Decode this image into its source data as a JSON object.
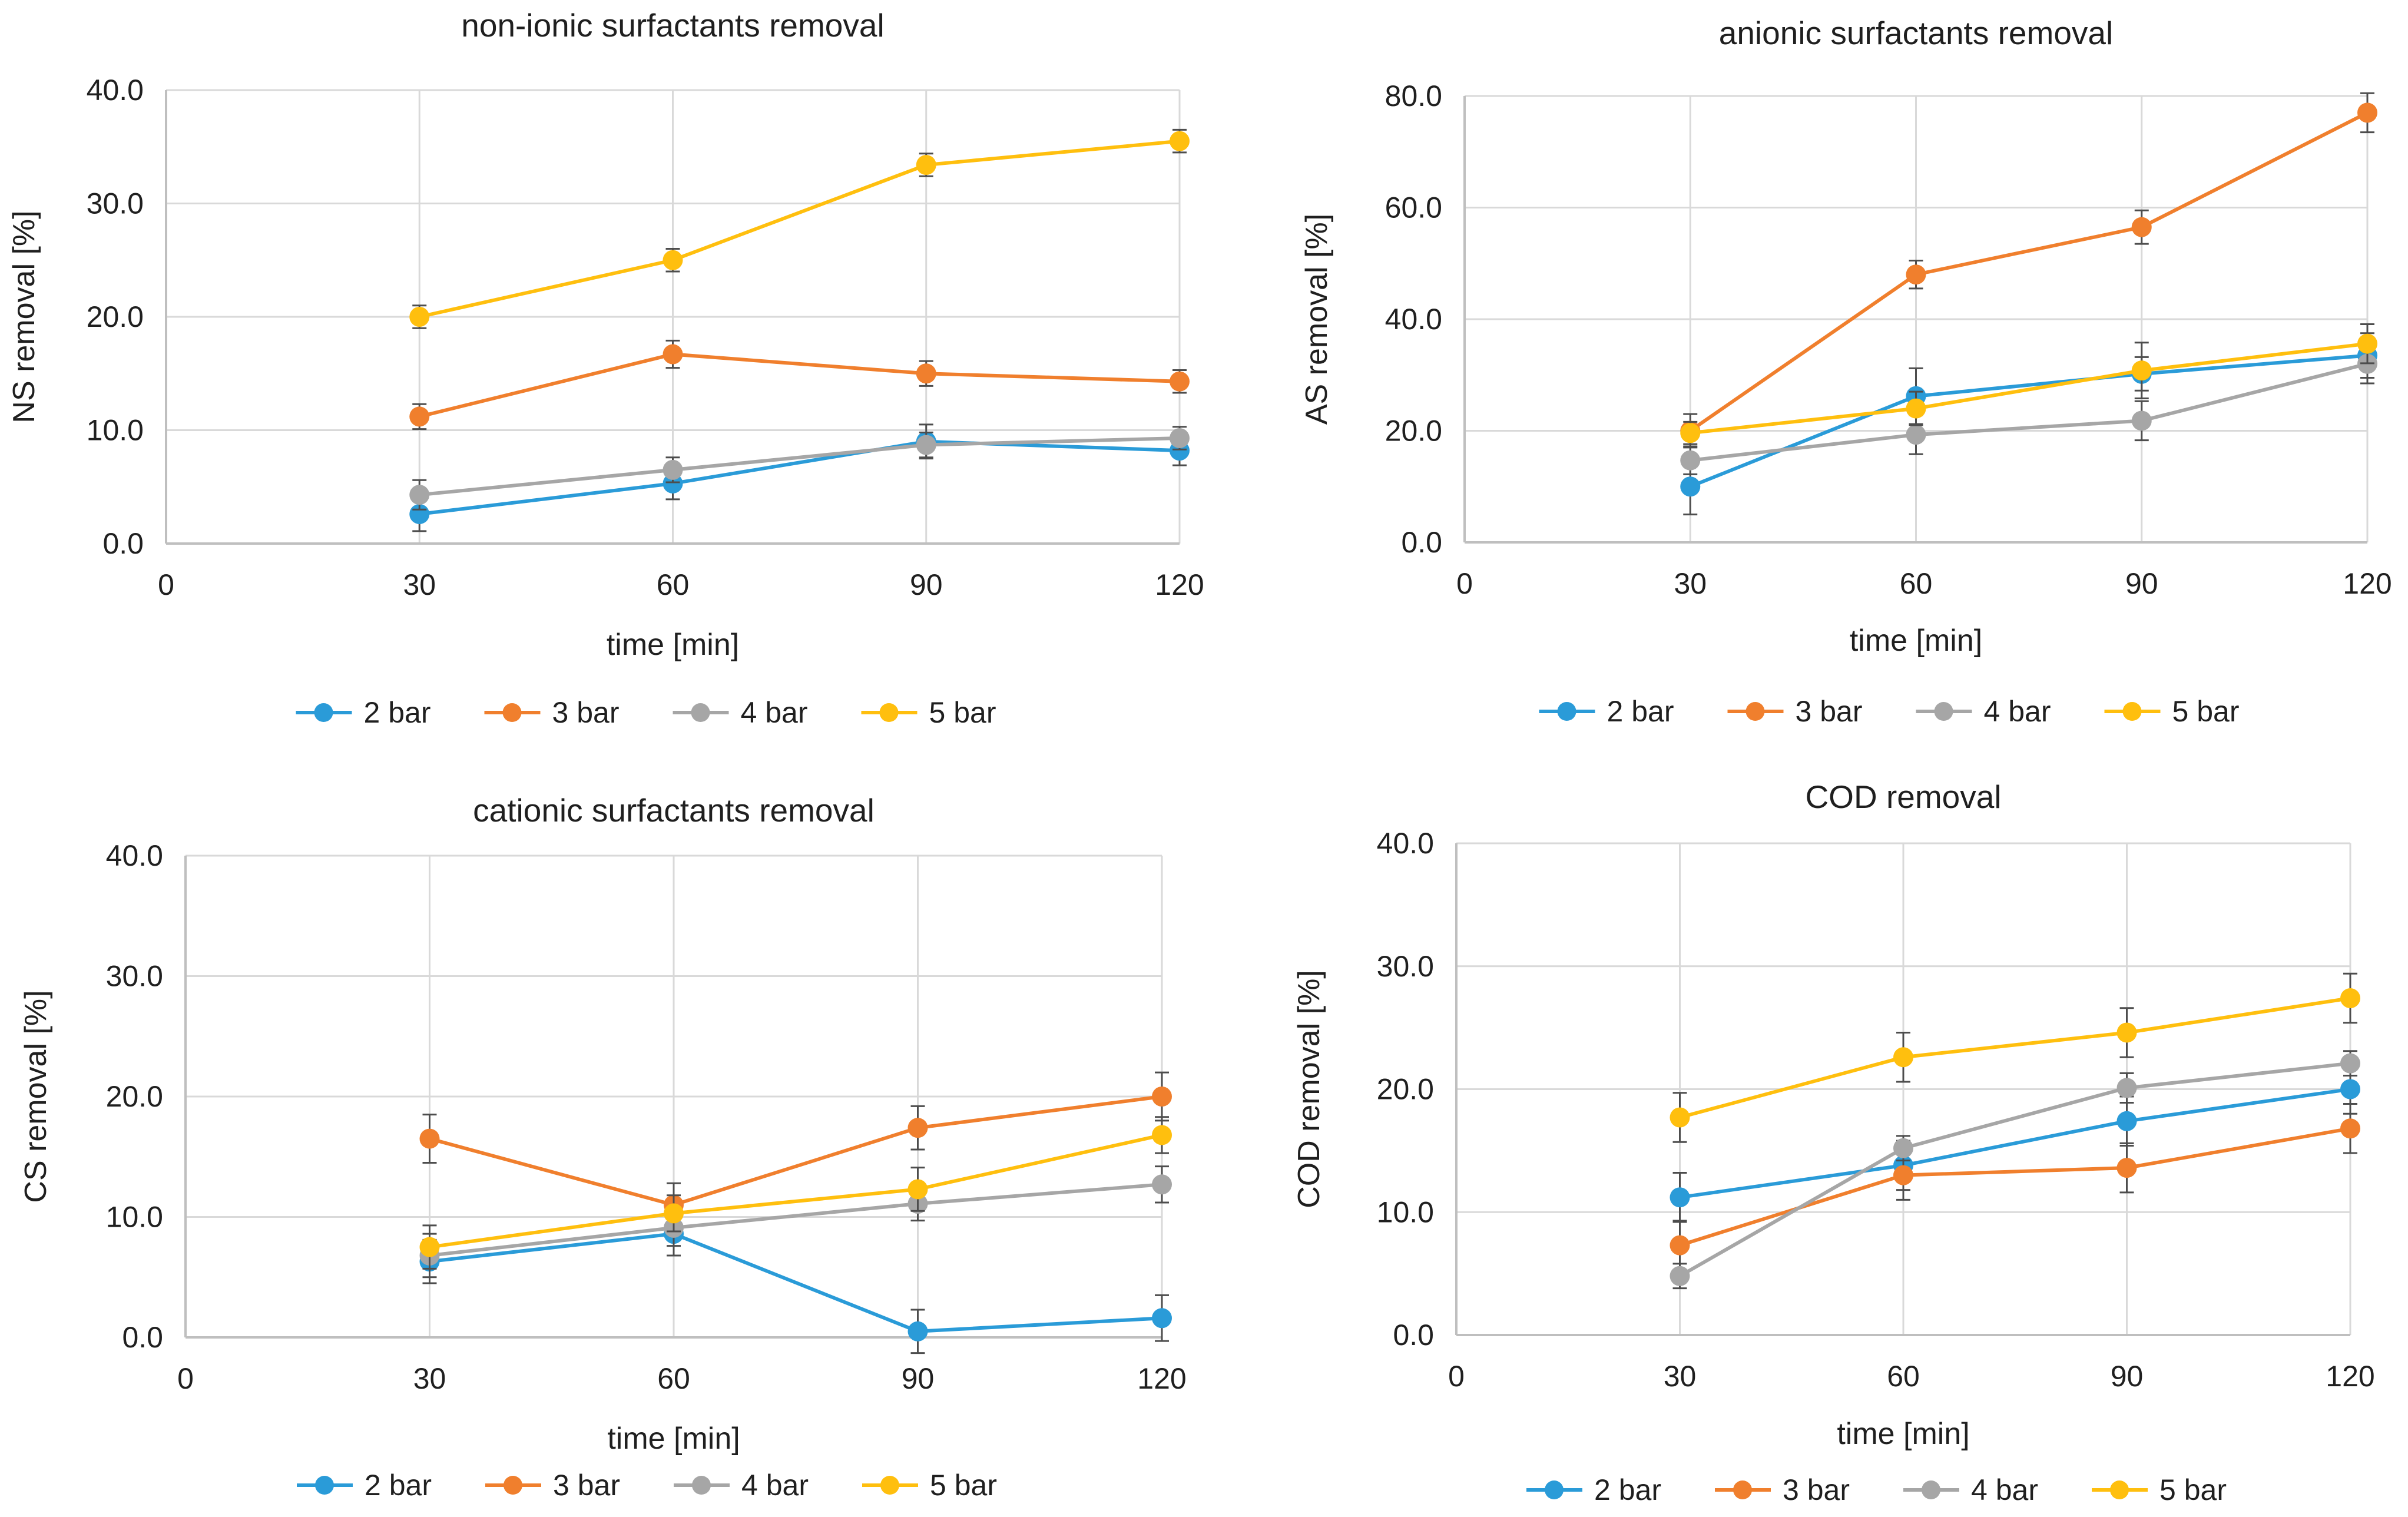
{
  "figure": {
    "series_colors": {
      "2 bar": "#2A9BD8",
      "3 bar": "#F07F2D",
      "4 bar": "#A6A6A6",
      "5 bar": "#FFBF0E"
    },
    "grid_color": "#D9D9D9",
    "axis_color": "#BFBFBF",
    "text_color": "#1F1F1F"
  },
  "chart_data": [
    {
      "type": "line",
      "title": "non-ionic surfactants removal",
      "xlabel": "time [min]",
      "ylabel": "NS removal  [%]",
      "x_ticks": [
        "0",
        "30",
        "60",
        "90",
        "120"
      ],
      "x_tick_values": [
        0,
        30,
        60,
        90,
        120
      ],
      "y_ticks": [
        "0.0",
        "10.0",
        "20.0",
        "30.0",
        "40.0"
      ],
      "y_tick_values": [
        0,
        10,
        20,
        30,
        40
      ],
      "xlim": [
        0,
        120
      ],
      "ylim": [
        0,
        40
      ],
      "x": [
        30,
        60,
        90,
        120
      ],
      "series": [
        {
          "name": "2 bar",
          "values": [
            2.6,
            5.3,
            9.0,
            8.2
          ],
          "errors": [
            1.5,
            1.4,
            1.5,
            1.3
          ]
        },
        {
          "name": "3 bar",
          "values": [
            11.2,
            16.7,
            15.0,
            14.3
          ],
          "errors": [
            1.1,
            1.2,
            1.1,
            1.0
          ]
        },
        {
          "name": "4 bar",
          "values": [
            4.3,
            6.5,
            8.7,
            9.3
          ],
          "errors": [
            1.3,
            1.1,
            1.1,
            1.0
          ]
        },
        {
          "name": "5 bar",
          "values": [
            20.0,
            25.0,
            33.4,
            35.5
          ],
          "errors": [
            1.0,
            1.0,
            1.0,
            1.0
          ]
        }
      ],
      "legend": [
        "2 bar",
        "3 bar",
        "4 bar",
        "5 bar"
      ],
      "legend_position": "bottom"
    },
    {
      "type": "line",
      "title": "anionic surfactants removal",
      "xlabel": "time [min]",
      "ylabel": "AS removal [%]",
      "x_ticks": [
        "0",
        "30",
        "60",
        "90",
        "120"
      ],
      "x_tick_values": [
        0,
        30,
        60,
        90,
        120
      ],
      "y_ticks": [
        "0.0",
        "20.0",
        "40.0",
        "60.0",
        "80.0"
      ],
      "y_tick_values": [
        0,
        20,
        40,
        60,
        80
      ],
      "xlim": [
        0,
        120
      ],
      "ylim": [
        0,
        80
      ],
      "x": [
        30,
        60,
        90,
        120
      ],
      "series": [
        {
          "name": "2 bar",
          "values": [
            10.0,
            26.2,
            30.2,
            33.5
          ],
          "errors": [
            5.0,
            5.0,
            3.0,
            4.0
          ]
        },
        {
          "name": "3 bar",
          "values": [
            20.0,
            48.0,
            56.5,
            77.0
          ],
          "errors": [
            3.0,
            2.5,
            3.0,
            3.5
          ]
        },
        {
          "name": "4 bar",
          "values": [
            14.7,
            19.3,
            21.8,
            32.0
          ],
          "errors": [
            2.5,
            3.5,
            3.5,
            3.5
          ]
        },
        {
          "name": "5 bar",
          "values": [
            19.6,
            24.0,
            30.8,
            35.6
          ],
          "errors": [
            2.0,
            3.0,
            5.0,
            3.5
          ]
        }
      ],
      "legend": [
        "2 bar",
        "3 bar",
        "4 bar",
        "5 bar"
      ],
      "legend_position": "bottom"
    },
    {
      "type": "line",
      "title": "cationic surfactants removal",
      "xlabel": "time [min]",
      "ylabel": "CS removal [%]",
      "x_ticks": [
        "0",
        "30",
        "60",
        "90",
        "120"
      ],
      "x_tick_values": [
        0,
        30,
        60,
        90,
        120
      ],
      "y_ticks": [
        "0.0",
        "10.0",
        "20.0",
        "30.0",
        "40.0"
      ],
      "y_tick_values": [
        0,
        10,
        20,
        30,
        40
      ],
      "xlim": [
        0,
        120
      ],
      "ylim": [
        0,
        40
      ],
      "x": [
        30,
        60,
        90,
        120
      ],
      "series": [
        {
          "name": "2 bar",
          "values": [
            6.3,
            8.6,
            0.5,
            1.6
          ],
          "errors": [
            1.8,
            1.8,
            1.8,
            1.9
          ]
        },
        {
          "name": "3 bar",
          "values": [
            16.5,
            11.0,
            17.4,
            20.0
          ],
          "errors": [
            2.0,
            1.8,
            1.8,
            2.0
          ]
        },
        {
          "name": "4 bar",
          "values": [
            6.8,
            9.1,
            11.1,
            12.7
          ],
          "errors": [
            1.8,
            1.5,
            1.4,
            1.5
          ]
        },
        {
          "name": "5 bar",
          "values": [
            7.5,
            10.3,
            12.3,
            16.8
          ],
          "errors": [
            1.8,
            1.5,
            1.8,
            1.5
          ]
        }
      ],
      "legend": [
        "2 bar",
        "3 bar",
        "4 bar",
        "5 bar"
      ],
      "legend_position": "bottom"
    },
    {
      "type": "line",
      "title": "COD removal",
      "xlabel": "time [min]",
      "ylabel": "COD removal [%]",
      "x_ticks": [
        "0",
        "30",
        "60",
        "90",
        "120"
      ],
      "x_tick_values": [
        0,
        30,
        60,
        90,
        120
      ],
      "y_ticks": [
        "0.0",
        "10.0",
        "20.0",
        "30.0",
        "40.0"
      ],
      "y_tick_values": [
        0,
        10,
        20,
        30,
        40
      ],
      "xlim": [
        0,
        120
      ],
      "ylim": [
        0,
        40
      ],
      "x": [
        30,
        60,
        90,
        120
      ],
      "series": [
        {
          "name": "2 bar",
          "values": [
            11.2,
            13.8,
            17.4,
            20.0
          ],
          "errors": [
            2.0,
            2.0,
            2.0,
            2.0
          ]
        },
        {
          "name": "3 bar",
          "values": [
            7.3,
            13.0,
            13.6,
            16.8
          ],
          "errors": [
            2.0,
            2.0,
            2.0,
            2.0
          ]
        },
        {
          "name": "4 bar",
          "values": [
            4.8,
            15.2,
            20.1,
            22.1
          ],
          "errors": [
            1.0,
            1.0,
            1.2,
            1.0
          ]
        },
        {
          "name": "5 bar",
          "values": [
            17.7,
            22.6,
            24.6,
            27.4
          ],
          "errors": [
            2.0,
            2.0,
            2.0,
            2.0
          ]
        }
      ],
      "legend": [
        "2 bar",
        "3 bar",
        "4 bar",
        "5 bar"
      ],
      "legend_position": "bottom"
    }
  ]
}
